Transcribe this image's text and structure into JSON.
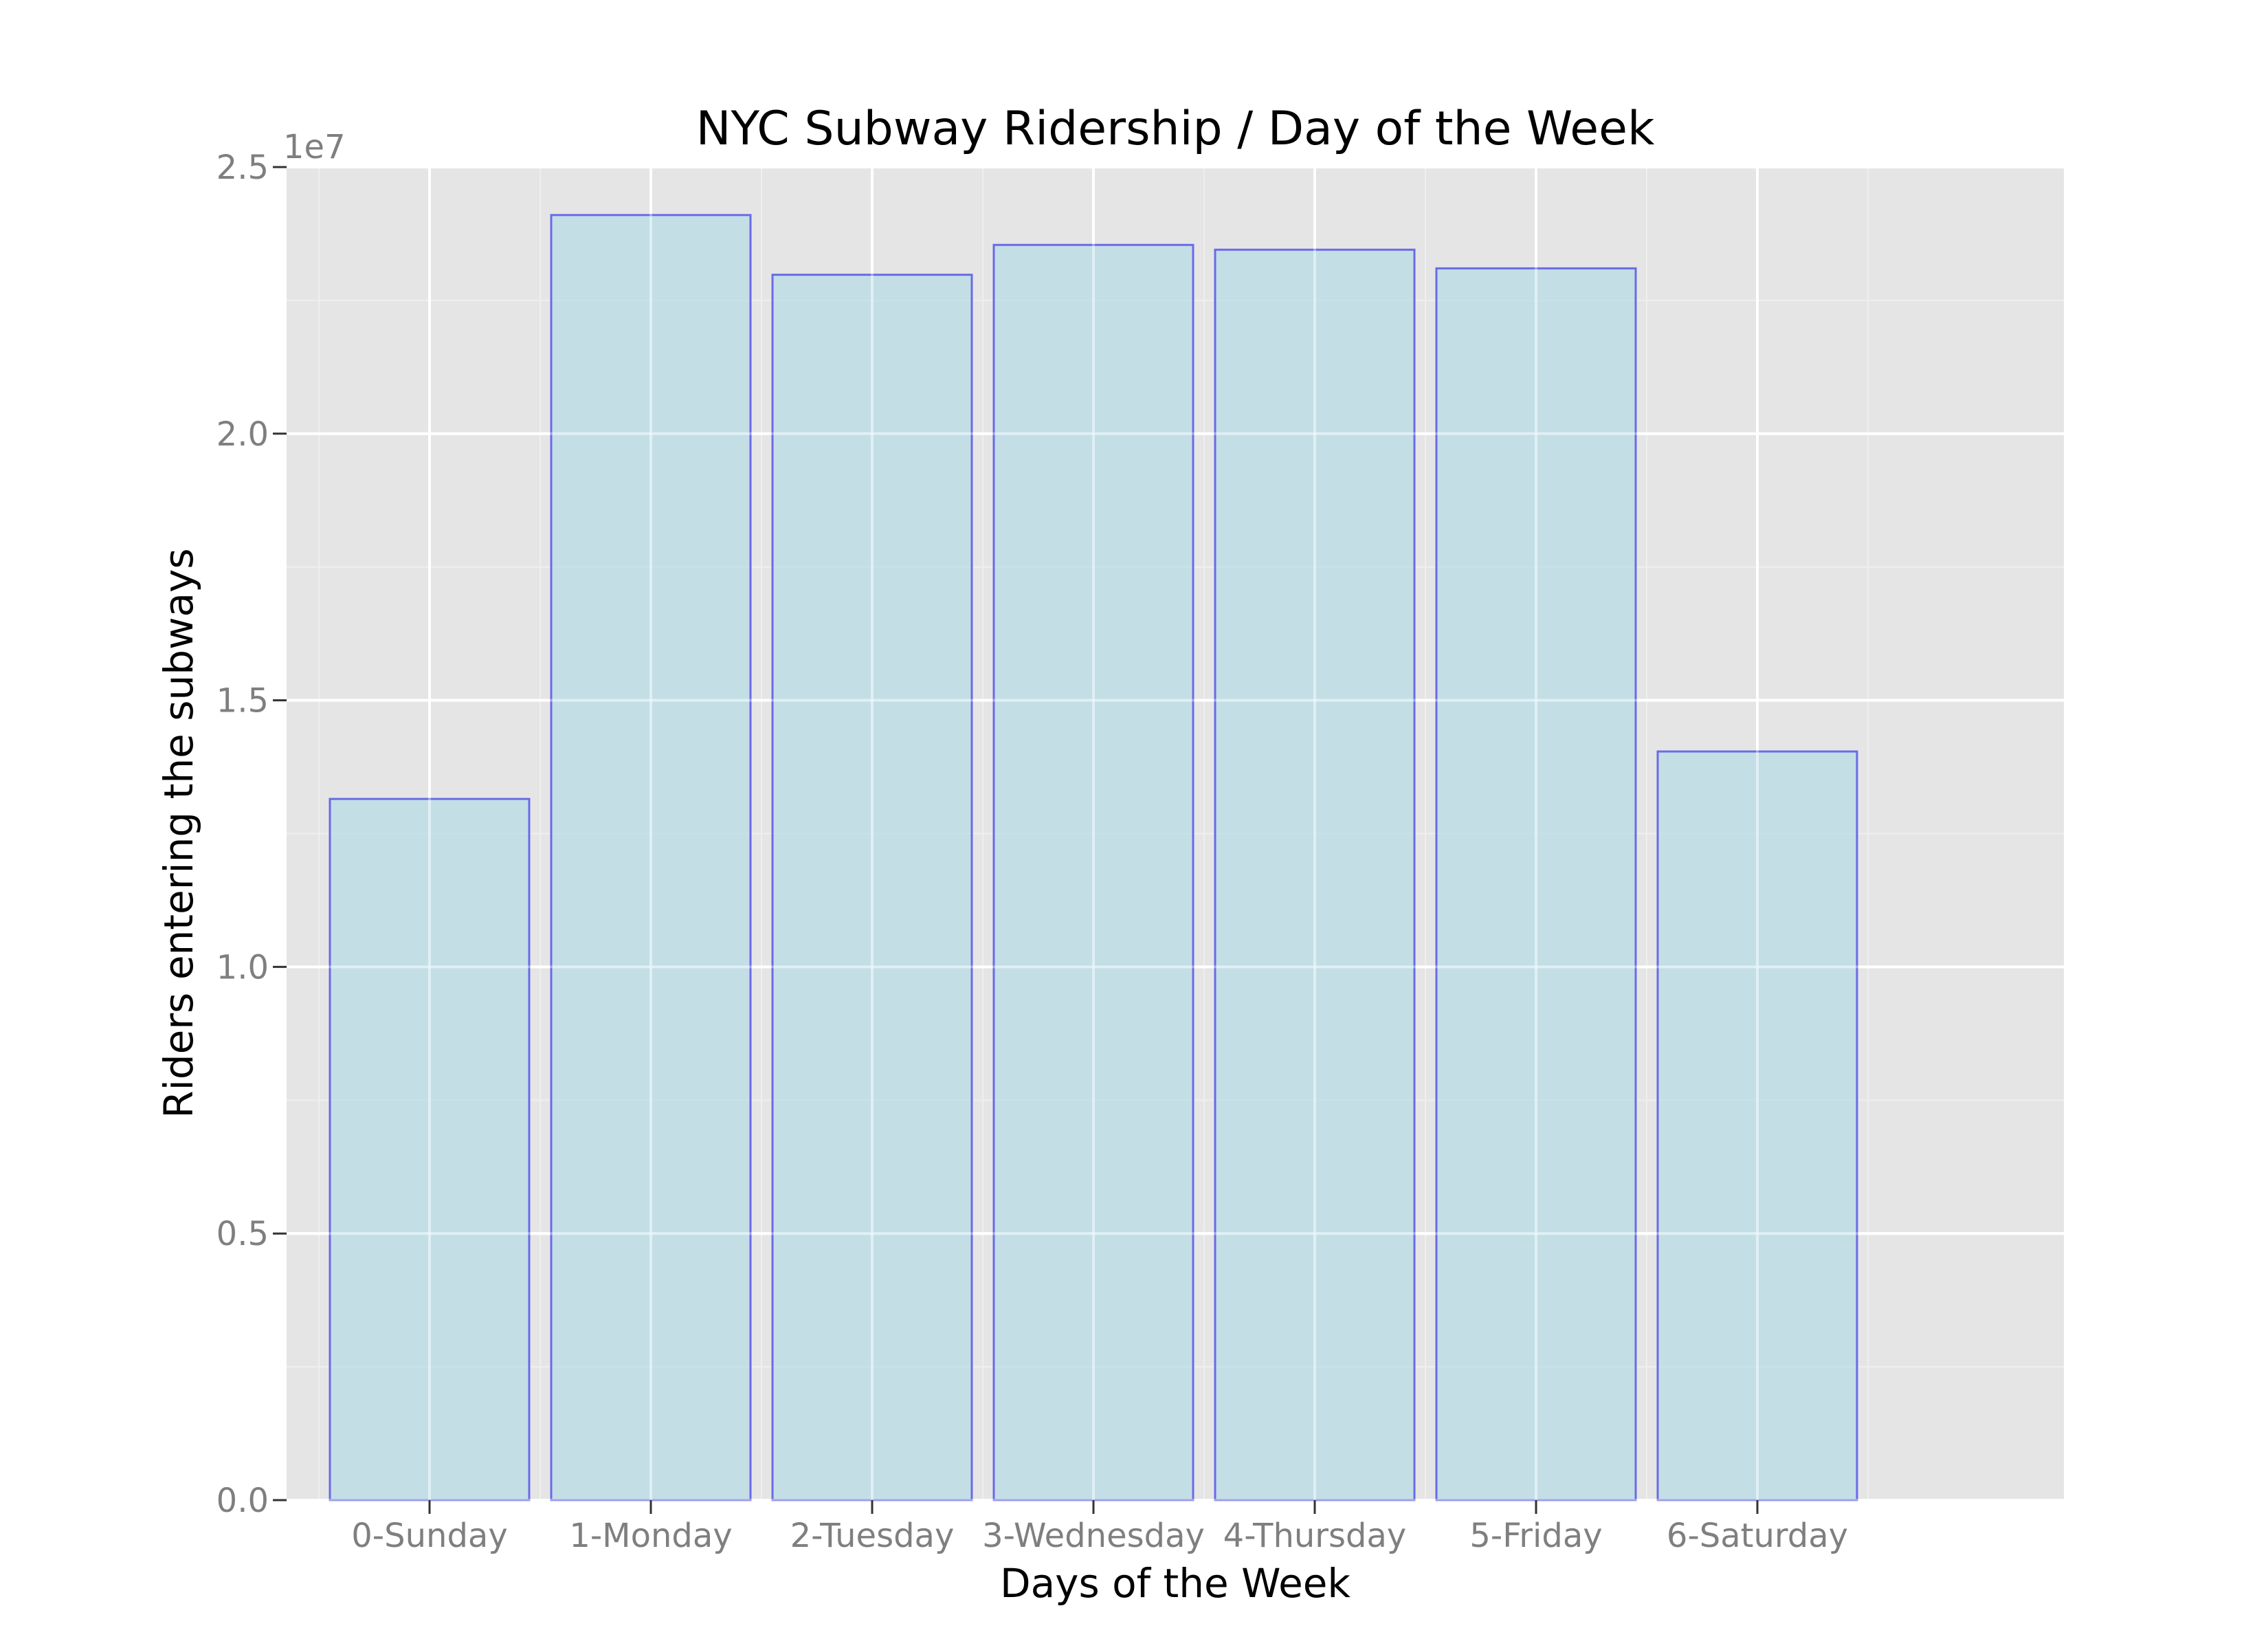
{
  "chart_data": {
    "type": "bar",
    "title": "NYC Subway Ridership / Day of the Week",
    "xlabel": "Days of the Week",
    "ylabel": "Riders entering the subways",
    "y_multiplier_label": "1e7",
    "categories": [
      "0-Sunday",
      "1-Monday",
      "2-Tuesday",
      "3-Wednesday",
      "4-Thursday",
      "5-Friday",
      "6-Saturday"
    ],
    "values": [
      13150000,
      24100000,
      22980000,
      23540000,
      23450000,
      23100000,
      14040000
    ],
    "ylim": [
      0,
      25000000
    ],
    "y_ticks": [
      {
        "value": 0,
        "label": "0.0"
      },
      {
        "value": 5000000,
        "label": "0.5"
      },
      {
        "value": 10000000,
        "label": "1.0"
      },
      {
        "value": 15000000,
        "label": "1.5"
      },
      {
        "value": 20000000,
        "label": "2.0"
      },
      {
        "value": 25000000,
        "label": "2.5"
      }
    ],
    "grid": true,
    "colors": {
      "panel_background": "#e5e5e5",
      "major_grid": "#ffffff",
      "minor_grid": "#efefef",
      "bar_fill": "#add8e6",
      "bar_edge": "#6a6ae8",
      "tick_text": "#7f7f7f"
    }
  }
}
